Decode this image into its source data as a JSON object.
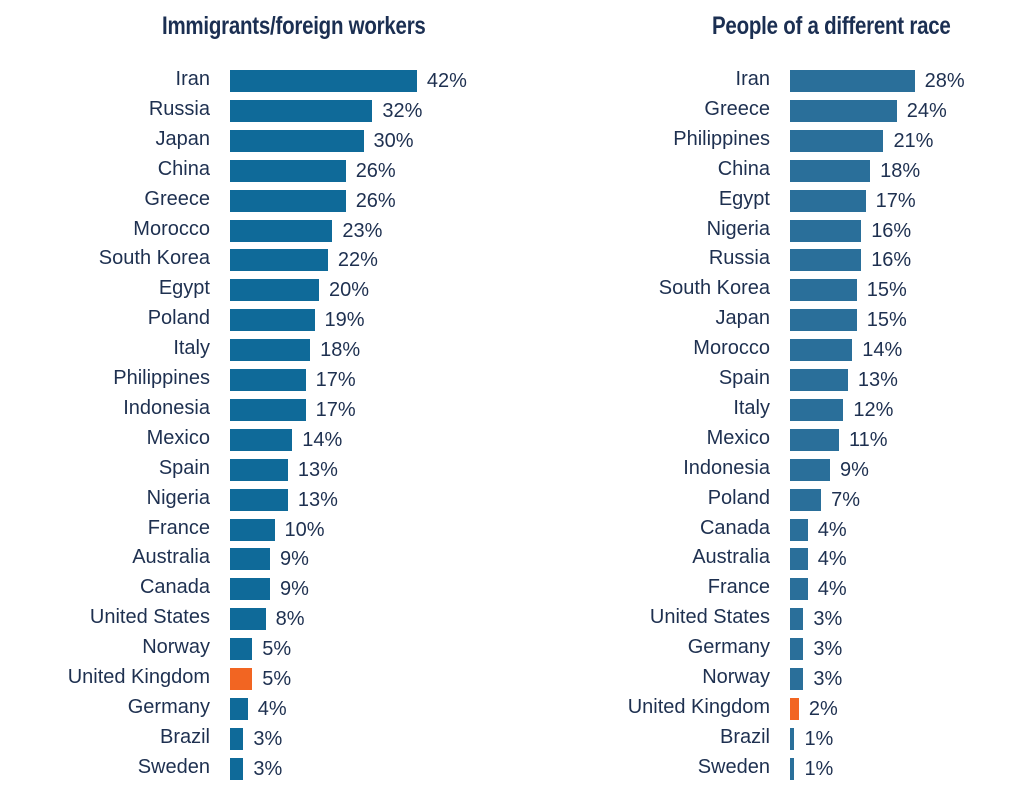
{
  "chart_data": [
    {
      "type": "bar",
      "orientation": "horizontal",
      "title": "Immigrants/foreign workers",
      "categories": [
        "Iran",
        "Russia",
        "Japan",
        "China",
        "Greece",
        "Morocco",
        "South Korea",
        "Egypt",
        "Poland",
        "Italy",
        "Philippines",
        "Indonesia",
        "Mexico",
        "Spain",
        "Nigeria",
        "France",
        "Australia",
        "Canada",
        "United States",
        "Norway",
        "United Kingdom",
        "Germany",
        "Brazil",
        "Sweden"
      ],
      "values": [
        42,
        32,
        30,
        26,
        26,
        23,
        22,
        20,
        19,
        18,
        17,
        17,
        14,
        13,
        13,
        10,
        9,
        9,
        8,
        5,
        5,
        4,
        3,
        3
      ],
      "value_labels": [
        "42%",
        "32%",
        "30%",
        "26%",
        "26%",
        "23%",
        "22%",
        "20%",
        "19%",
        "18%",
        "17%",
        "17%",
        "14%",
        "13%",
        "13%",
        "10%",
        "9%",
        "9%",
        "8%",
        "5%",
        "5%",
        "4%",
        "3%",
        "3%"
      ],
      "unit": "%",
      "highlight": "United Kingdom",
      "bar_color": "#0f6a99",
      "highlight_color": "#f26522"
    },
    {
      "type": "bar",
      "orientation": "horizontal",
      "title": "People of a different race",
      "categories": [
        "Iran",
        "Greece",
        "Philippines",
        "China",
        "Egypt",
        "Nigeria",
        "Russia",
        "South Korea",
        "Japan",
        "Morocco",
        "Spain",
        "Italy",
        "Mexico",
        "Indonesia",
        "Poland",
        "Canada",
        "Australia",
        "France",
        "United States",
        "Germany",
        "Norway",
        "United Kingdom",
        "Brazil",
        "Sweden"
      ],
      "values": [
        28,
        24,
        21,
        18,
        17,
        16,
        16,
        15,
        15,
        14,
        13,
        12,
        11,
        9,
        7,
        4,
        4,
        4,
        3,
        3,
        3,
        2,
        1,
        1
      ],
      "value_labels": [
        "28%",
        "24%",
        "21%",
        "18%",
        "17%",
        "16%",
        "16%",
        "15%",
        "15%",
        "14%",
        "13%",
        "12%",
        "11%",
        "9%",
        "7%",
        "4%",
        "4%",
        "4%",
        "3%",
        "3%",
        "3%",
        "2%",
        "1%",
        "1%"
      ],
      "unit": "%",
      "highlight": "United Kingdom",
      "bar_color": "#2a6f9a",
      "highlight_color": "#f26522"
    }
  ]
}
